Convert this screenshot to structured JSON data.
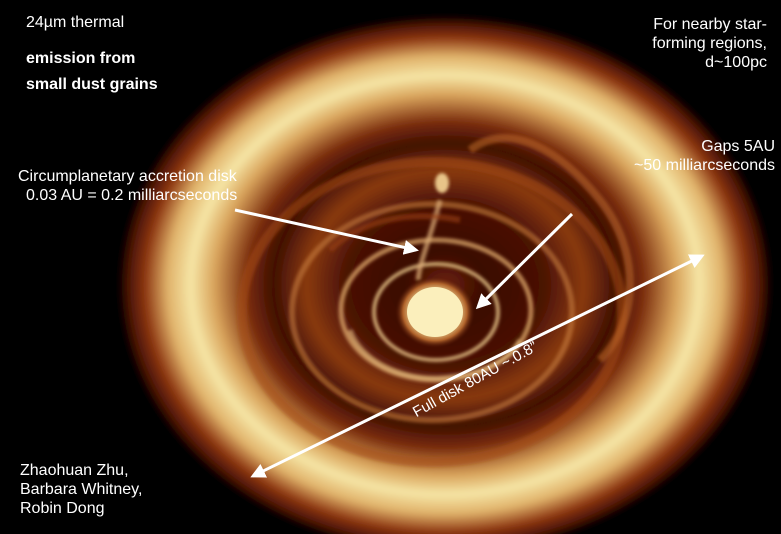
{
  "title_lines": [
    "24µm thermal",
    "emission from",
    "small dust grains"
  ],
  "distance_lines": [
    "For nearby star-",
    "forming regions,",
    "d~100pc"
  ],
  "gaps_lines": [
    "Gaps 5AU",
    "~50 milliarcseconds"
  ],
  "cpd_lines": [
    "Circumplanetary accretion disk",
    "0.03 AU = 0.2 milliarcseconds"
  ],
  "full_disk_label": "Full disk 80AU ~.0.8”",
  "credit_lines": [
    "Zhaohuan Zhu,",
    "Barbara Whitney,",
    "Robin Dong"
  ],
  "colors": {
    "background": "#000000",
    "ring_bright": "#f6e6a6",
    "ring_mid": "#d39a52",
    "ring_dark": "#5a1605",
    "text": "#ffffff"
  }
}
